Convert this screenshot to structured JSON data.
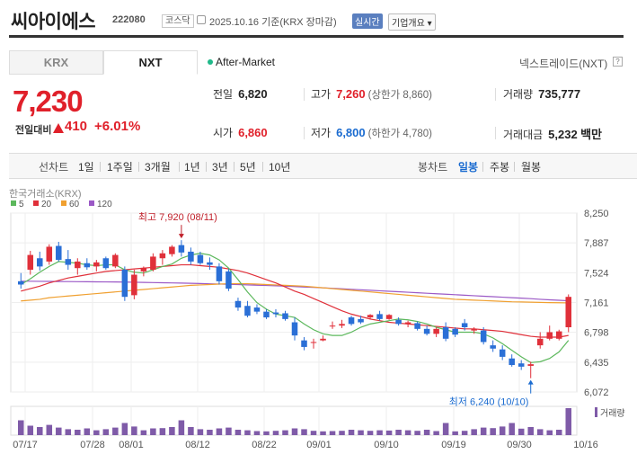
{
  "header": {
    "name": "씨아이에스",
    "code": "222080",
    "market": "코스닥",
    "date": "2025.10.16 기준(KRX 장마감)",
    "realtime": "실시간",
    "company_info": "기업개요 ▾"
  },
  "tabs": {
    "krx": "KRX",
    "nxt": "NXT"
  },
  "after_market": "After-Market",
  "nxt_name": "넥스트레이드(NXT)",
  "nxt_help": "?",
  "price": {
    "current": "7,230",
    "change_label": "전일대비",
    "change_amount": "410",
    "change_pct": "+6.01%"
  },
  "quote": {
    "prev_label": "전일",
    "prev": "6,820",
    "high_label": "고가",
    "high": "7,260",
    "upper_limit": "(상한가 8,860)",
    "volume_label": "거래량",
    "volume": "735,777",
    "open_label": "시가",
    "open": "6,860",
    "low_label": "저가",
    "low": "6,800",
    "lower_limit": "(하한가 4,780)",
    "value_label": "거래대금",
    "value": "5,232",
    "value_unit": "백만"
  },
  "period": {
    "line_label": "선차트",
    "periods": [
      "1일",
      "1주일",
      "3개월",
      "1년",
      "3년",
      "5년",
      "10년"
    ],
    "candle_label": "봉차트",
    "candles": [
      "일봉",
      "주봉",
      "월봉"
    ],
    "selected_candle": "일봉"
  },
  "chart_data": {
    "type": "candlestick",
    "source_label": "한국거래소(KRX)",
    "legend": [
      {
        "name": "5",
        "color": "#5cb85c"
      },
      {
        "name": "20",
        "color": "#e0303a"
      },
      {
        "name": "60",
        "color": "#f0a030"
      },
      {
        "name": "120",
        "color": "#9b59c6"
      }
    ],
    "y_ticks": [
      "8,250",
      "7,887",
      "7,524",
      "7,161",
      "6,798",
      "6,435",
      "6,072"
    ],
    "ylim": [
      6072,
      8250
    ],
    "x_ticks": [
      "07/17",
      "07/28",
      "08/01",
      "08/12",
      "08/22",
      "09/01",
      "09/10",
      "09/19",
      "09/30",
      "10/16"
    ],
    "volume_label": "거래량",
    "annotations": {
      "high": "최고 7,920 (08/11)",
      "low": "최저 6,240 (10/10)"
    },
    "up_color": "#e0303a",
    "down_color": "#2a6fd6",
    "candles": [
      {
        "o": 7420,
        "h": 7520,
        "l": 7330,
        "c": 7380
      },
      {
        "o": 7560,
        "h": 7790,
        "l": 7500,
        "c": 7740
      },
      {
        "o": 7700,
        "h": 7780,
        "l": 7550,
        "c": 7600
      },
      {
        "o": 7660,
        "h": 7870,
        "l": 7620,
        "c": 7840
      },
      {
        "o": 7850,
        "h": 7900,
        "l": 7660,
        "c": 7680
      },
      {
        "o": 7690,
        "h": 7800,
        "l": 7560,
        "c": 7620
      },
      {
        "o": 7580,
        "h": 7700,
        "l": 7500,
        "c": 7660
      },
      {
        "o": 7640,
        "h": 7700,
        "l": 7560,
        "c": 7590
      },
      {
        "o": 7600,
        "h": 7680,
        "l": 7540,
        "c": 7650
      },
      {
        "o": 7700,
        "h": 7720,
        "l": 7560,
        "c": 7580
      },
      {
        "o": 7600,
        "h": 7760,
        "l": 7580,
        "c": 7740
      },
      {
        "o": 7560,
        "h": 7600,
        "l": 7180,
        "c": 7230
      },
      {
        "o": 7250,
        "h": 7560,
        "l": 7200,
        "c": 7500
      },
      {
        "o": 7540,
        "h": 7600,
        "l": 7480,
        "c": 7580
      },
      {
        "o": 7560,
        "h": 7760,
        "l": 7540,
        "c": 7720
      },
      {
        "o": 7700,
        "h": 7800,
        "l": 7620,
        "c": 7760
      },
      {
        "o": 7750,
        "h": 7860,
        "l": 7720,
        "c": 7840
      },
      {
        "o": 7860,
        "h": 7920,
        "l": 7720,
        "c": 7770
      },
      {
        "o": 7780,
        "h": 7830,
        "l": 7620,
        "c": 7660
      },
      {
        "o": 7740,
        "h": 7780,
        "l": 7620,
        "c": 7640
      },
      {
        "o": 7650,
        "h": 7710,
        "l": 7560,
        "c": 7620
      },
      {
        "o": 7600,
        "h": 7640,
        "l": 7380,
        "c": 7420
      },
      {
        "o": 7540,
        "h": 7570,
        "l": 7300,
        "c": 7330
      },
      {
        "o": 7180,
        "h": 7220,
        "l": 7060,
        "c": 7100
      },
      {
        "o": 7120,
        "h": 7180,
        "l": 6980,
        "c": 7000
      },
      {
        "o": 7100,
        "h": 7140,
        "l": 7020,
        "c": 7050
      },
      {
        "o": 7050,
        "h": 7080,
        "l": 6960,
        "c": 6980
      },
      {
        "o": 7040,
        "h": 7080,
        "l": 6980,
        "c": 7020
      },
      {
        "o": 7030,
        "h": 7060,
        "l": 6940,
        "c": 6960
      },
      {
        "o": 6920,
        "h": 6980,
        "l": 6700,
        "c": 6760
      },
      {
        "o": 6700,
        "h": 6740,
        "l": 6580,
        "c": 6620
      },
      {
        "o": 6680,
        "h": 6720,
        "l": 6600,
        "c": 6680
      },
      {
        "o": 6700,
        "h": 6760,
        "l": 6690,
        "c": 6720
      },
      {
        "o": 6870,
        "h": 6930,
        "l": 6840,
        "c": 6880
      },
      {
        "o": 6880,
        "h": 6950,
        "l": 6850,
        "c": 6900
      },
      {
        "o": 6980,
        "h": 7000,
        "l": 6880,
        "c": 6900
      },
      {
        "o": 6960,
        "h": 7000,
        "l": 6900,
        "c": 6920
      },
      {
        "o": 6980,
        "h": 7020,
        "l": 6960,
        "c": 7010
      },
      {
        "o": 7020,
        "h": 7060,
        "l": 6940,
        "c": 6960
      },
      {
        "o": 6960,
        "h": 7020,
        "l": 6950,
        "c": 7010
      },
      {
        "o": 6950,
        "h": 6980,
        "l": 6880,
        "c": 6900
      },
      {
        "o": 6900,
        "h": 6940,
        "l": 6860,
        "c": 6920
      },
      {
        "o": 6910,
        "h": 6930,
        "l": 6820,
        "c": 6840
      },
      {
        "o": 6840,
        "h": 6880,
        "l": 6760,
        "c": 6780
      },
      {
        "o": 6780,
        "h": 6860,
        "l": 6740,
        "c": 6840
      },
      {
        "o": 6860,
        "h": 6920,
        "l": 6690,
        "c": 6720
      },
      {
        "o": 6840,
        "h": 6860,
        "l": 6740,
        "c": 6770
      },
      {
        "o": 6910,
        "h": 6960,
        "l": 6820,
        "c": 6860
      },
      {
        "o": 6820,
        "h": 6860,
        "l": 6780,
        "c": 6840
      },
      {
        "o": 6820,
        "h": 6860,
        "l": 6650,
        "c": 6680
      },
      {
        "o": 6640,
        "h": 6700,
        "l": 6560,
        "c": 6600
      },
      {
        "o": 6590,
        "h": 6640,
        "l": 6460,
        "c": 6500
      },
      {
        "o": 6480,
        "h": 6530,
        "l": 6380,
        "c": 6400
      },
      {
        "o": 6420,
        "h": 6460,
        "l": 6340,
        "c": 6380
      },
      {
        "o": 6390,
        "h": 6440,
        "l": 6240,
        "c": 6410
      },
      {
        "o": 6640,
        "h": 6800,
        "l": 6600,
        "c": 6720
      },
      {
        "o": 6720,
        "h": 6880,
        "l": 6700,
        "c": 6800
      },
      {
        "o": 6720,
        "h": 6830,
        "l": 6700,
        "c": 6810
      },
      {
        "o": 6860,
        "h": 7260,
        "l": 6800,
        "c": 7230
      }
    ],
    "volumes": [
      55,
      35,
      30,
      38,
      28,
      22,
      20,
      25,
      18,
      22,
      28,
      45,
      32,
      18,
      25,
      26,
      30,
      55,
      30,
      22,
      20,
      25,
      28,
      20,
      18,
      15,
      14,
      16,
      18,
      25,
      22,
      16,
      14,
      15,
      16,
      20,
      18,
      16,
      18,
      17,
      20,
      18,
      16,
      20,
      15,
      45,
      14,
      16,
      22,
      28,
      26,
      32,
      45,
      24,
      30,
      22,
      18,
      20,
      100
    ],
    "ma5": [
      7380,
      7450,
      7530,
      7600,
      7660,
      7650,
      7640,
      7620,
      7610,
      7620,
      7620,
      7560,
      7530,
      7520,
      7560,
      7600,
      7630,
      7700,
      7740,
      7760,
      7740,
      7680,
      7580,
      7440,
      7290,
      7160,
      7080,
      7020,
      7000,
      6980,
      6900,
      6830,
      6780,
      6760,
      6760,
      6800,
      6860,
      6900,
      6920,
      6940,
      6960,
      6950,
      6930,
      6900,
      6860,
      6830,
      6800,
      6800,
      6800,
      6780,
      6730,
      6660,
      6580,
      6500,
      6430,
      6440,
      6480,
      6560,
      6700
    ],
    "ma20": [
      7300,
      7330,
      7360,
      7400,
      7430,
      7460,
      7480,
      7500,
      7520,
      7540,
      7550,
      7560,
      7570,
      7580,
      7590,
      7600,
      7610,
      7620,
      7620,
      7610,
      7600,
      7590,
      7570,
      7550,
      7520,
      7480,
      7440,
      7400,
      7350,
      7300,
      7260,
      7210,
      7160,
      7110,
      7060,
      7020,
      6990,
      6960,
      6940,
      6920,
      6910,
      6900,
      6890,
      6880,
      6870,
      6860,
      6850,
      6840,
      6840,
      6830,
      6820,
      6810,
      6790,
      6770,
      6750,
      6740,
      6740,
      6740,
      6760
    ],
    "ma60": [
      7180,
      7190,
      7200,
      7220,
      7230,
      7240,
      7250,
      7260,
      7270,
      7280,
      7290,
      7300,
      7310,
      7320,
      7330,
      7340,
      7350,
      7360,
      7370,
      7375,
      7380,
      7385,
      7390,
      7390,
      7390,
      7385,
      7380,
      7375,
      7370,
      7365,
      7360,
      7350,
      7340,
      7330,
      7320,
      7310,
      7300,
      7290,
      7280,
      7270,
      7260,
      7250,
      7240,
      7230,
      7220,
      7210,
      7200,
      7195,
      7190,
      7185,
      7180,
      7175,
      7170,
      7168,
      7165,
      7162,
      7160,
      7158,
      7156
    ],
    "ma120": [
      7420,
      7420,
      7419,
      7418,
      7417,
      7416,
      7415,
      7414,
      7413,
      7412,
      7411,
      7410,
      7408,
      7406,
      7404,
      7402,
      7400,
      7398,
      7395,
      7392,
      7389,
      7386,
      7383,
      7380,
      7376,
      7372,
      7368,
      7364,
      7360,
      7355,
      7350,
      7345,
      7340,
      7334,
      7328,
      7322,
      7316,
      7310,
      7304,
      7298,
      7292,
      7286,
      7280,
      7274,
      7268,
      7262,
      7256,
      7250,
      7244,
      7238,
      7232,
      7226,
      7220,
      7214,
      7208,
      7200,
      7194,
      7188,
      7182
    ]
  }
}
